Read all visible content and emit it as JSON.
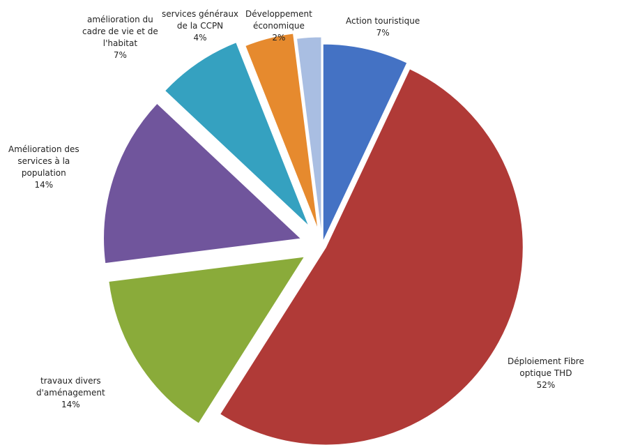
{
  "chart_data": {
    "type": "pie",
    "title": "",
    "legend": "none",
    "series": [
      {
        "name": "Action touristique",
        "pct_label": "7%",
        "value": 7,
        "color": "#4472C4"
      },
      {
        "name": "Déploiement Fibre optique THD",
        "pct_label": "52%",
        "value": 52,
        "color": "#B03A37"
      },
      {
        "name": "travaux divers d'aménagement",
        "pct_label": "14%",
        "value": 14,
        "color": "#8AAB3A"
      },
      {
        "name": "Amélioration des services à la population",
        "pct_label": "14%",
        "value": 14,
        "color": "#70559C"
      },
      {
        "name": "amélioration du cadre de vie et de l'habitat",
        "pct_label": "7%",
        "value": 7,
        "color": "#35A1C0"
      },
      {
        "name": "services généraux de la CCPN",
        "pct_label": "4%",
        "value": 4,
        "color": "#E68A2E"
      },
      {
        "name": "Développement économique",
        "pct_label": "2%",
        "value": 2,
        "color": "#A9BEE2"
      }
    ]
  },
  "labels": [
    {
      "lines": [
        "Action touristique"
      ],
      "pct": "7%"
    },
    {
      "lines": [
        "Déploiement Fibre",
        "optique THD"
      ],
      "pct": "52%"
    },
    {
      "lines": [
        "travaux divers",
        "d'aménagement"
      ],
      "pct": "14%"
    },
    {
      "lines": [
        "Amélioration des",
        "services à la",
        "population"
      ],
      "pct": "14%"
    },
    {
      "lines": [
        "amélioration du",
        "cadre de vie et de",
        "l'habitat"
      ],
      "pct": "7%"
    },
    {
      "lines": [
        "services généraux",
        "de la CCPN"
      ],
      "pct": "4%"
    },
    {
      "lines": [
        "Développement",
        "économique"
      ],
      "pct": "2%"
    }
  ]
}
